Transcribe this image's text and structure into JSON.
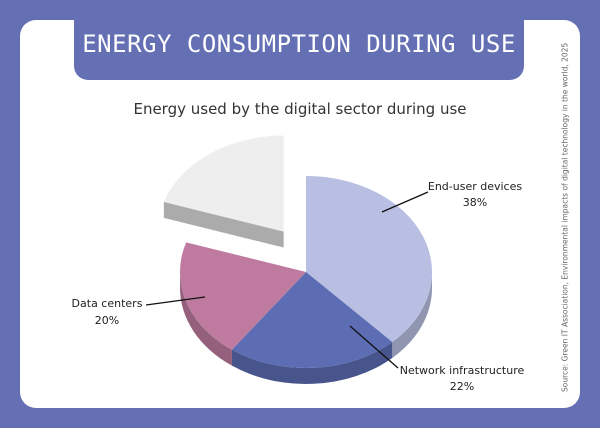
{
  "header": {
    "title": "ENERGY CONSUMPTION DURING USE"
  },
  "source_note": "Source: Green IT Association, Environmental impacts of digital technology in the world, 2025",
  "chart_data": {
    "type": "pie",
    "title": "Energy used by the digital sector during use",
    "slices": [
      {
        "label": "End-user devices",
        "value": 38,
        "value_label": "38%",
        "color": "#b8bfe2"
      },
      {
        "label": "Network infrastructure",
        "value": 22,
        "value_label": "22%",
        "color": "#5c6db4"
      },
      {
        "label": "Data centers",
        "value": 20,
        "value_label": "20%",
        "color": "#be7b9f"
      },
      {
        "label": "",
        "value": 20,
        "value_label": "",
        "color": "#eeeeee",
        "exploded": true
      }
    ],
    "style": "3d-exploded"
  }
}
